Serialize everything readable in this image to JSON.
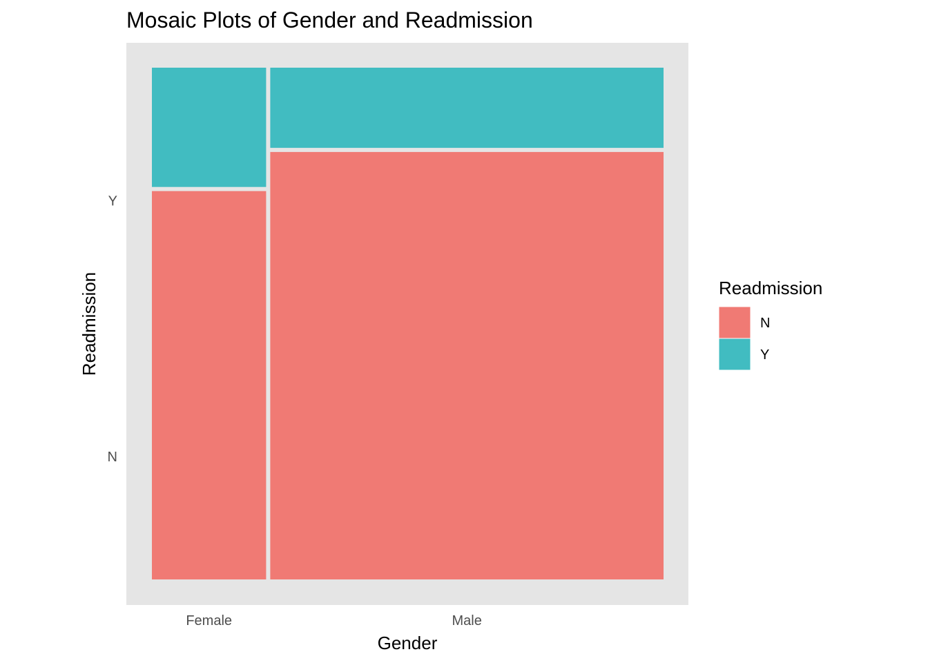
{
  "chart_data": {
    "type": "mosaic",
    "title": "Mosaic Plots of Gender and Readmission",
    "xlabel": "Gender",
    "ylabel": "Readmission",
    "categories": [
      "Female",
      "Male"
    ],
    "category_widths": [
      0.225,
      0.775
    ],
    "y_ticks": [
      {
        "label": "N",
        "value": 0.24
      },
      {
        "label": "Y",
        "value": 0.74
      }
    ],
    "series": [
      {
        "name": "N",
        "color": "#F07A74",
        "values": [
          0.765,
          0.842
        ]
      },
      {
        "name": "Y",
        "color": "#41BCC1",
        "values": [
          0.235,
          0.158
        ]
      }
    ],
    "legend": {
      "title": "Readmission",
      "position": "right",
      "items": [
        {
          "label": "N",
          "color": "#F07A74"
        },
        {
          "label": "Y",
          "color": "#41BCC1"
        }
      ]
    },
    "panel_background": "#E5E5E5",
    "tile_border": "#FFFFFF",
    "grid": false
  }
}
